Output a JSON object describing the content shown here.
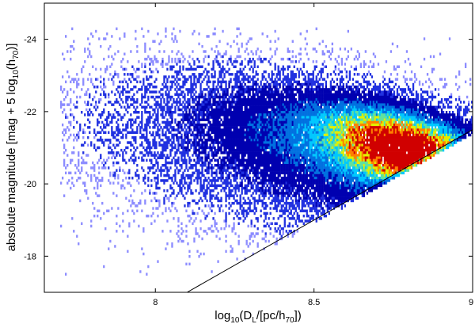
{
  "chart_data": {
    "type": "heatmap",
    "xlabel": {
      "prefix": "log",
      "base": "10",
      "mid": "(D",
      "mid_sub": "L",
      "after": "/[pc/h",
      "after_sub": "70",
      "suffix": "])"
    },
    "ylabel": {
      "prefix": "absolute magnitude [mag + 5 log",
      "base": "10",
      "mid": "(h",
      "mid_sub": "70",
      "suffix": ")]"
    },
    "xlim": [
      7.65,
      9.0
    ],
    "ylim": [
      -17.0,
      -25.0
    ],
    "x_ticks": [
      {
        "value": 8,
        "label": "8"
      },
      {
        "value": 8.5,
        "label": "8.5"
      },
      {
        "value": 9,
        "label": "9"
      }
    ],
    "y_ticks": [
      {
        "value": -24,
        "label": "-24"
      },
      {
        "value": -22,
        "label": "-22"
      },
      {
        "value": -20,
        "label": "-20"
      },
      {
        "value": -18,
        "label": "-18"
      }
    ],
    "limit_line": {
      "x": [
        8.1,
        9.0
      ],
      "y": [
        -17.0,
        -21.5
      ]
    },
    "density_peak": {
      "x": 8.8,
      "y": -21.0
    },
    "colorscale": [
      "#ffffff",
      "#8c8cff",
      "#2030e0",
      "#0000b0",
      "#0070e0",
      "#00c8ff",
      "#60e0a0",
      "#e0f000",
      "#ff8000",
      "#d00000"
    ]
  }
}
